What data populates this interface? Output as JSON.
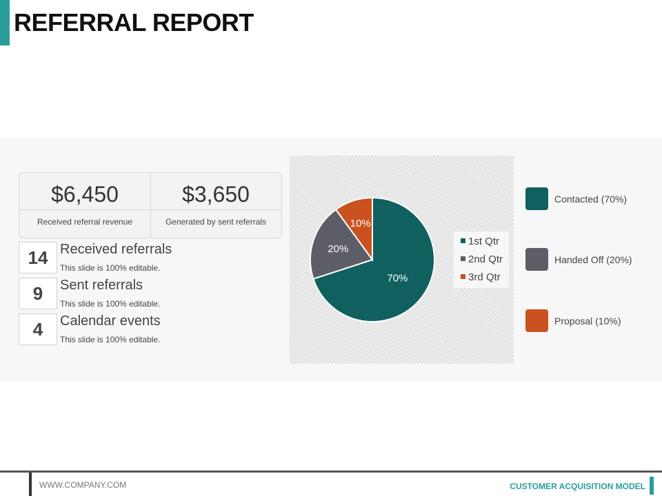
{
  "page": {
    "title": "REFERRAL REPORT"
  },
  "revenue": {
    "received_value": "$6,450",
    "received_label": "Received referral revenue",
    "generated_value": "$3,650",
    "generated_label": "Generated by sent referrals"
  },
  "stats": [
    {
      "number": "14",
      "title": "Received referrals",
      "subtitle": "This slide is 100% editable."
    },
    {
      "number": "9",
      "title": "Sent referrals",
      "subtitle": "This slide is 100% editable."
    },
    {
      "number": "4",
      "title": "Calendar events",
      "subtitle": "This slide is 100% editable."
    }
  ],
  "chart_data": {
    "type": "pie",
    "title": "",
    "categories": [
      "1st Qtr",
      "2nd Qtr",
      "3rd Qtr"
    ],
    "values": [
      70,
      20,
      10
    ],
    "data_labels": [
      "70%",
      "20%",
      "10%"
    ],
    "colors": [
      "#116060",
      "#5c5d66",
      "#c95220"
    ],
    "legend_position": "right"
  },
  "status_legend": [
    {
      "label": "Contacted (70%)",
      "color": "#116060"
    },
    {
      "label": "Handed Off (20%)",
      "color": "#5c5d66"
    },
    {
      "label": "Proposal (10%)",
      "color": "#c95220"
    }
  ],
  "footer": {
    "website": "WWW.COMPANY.COM",
    "model": "CUSTOMER ACQUISITION MODEL"
  },
  "theme": {
    "accent": "#2a9d9a"
  }
}
